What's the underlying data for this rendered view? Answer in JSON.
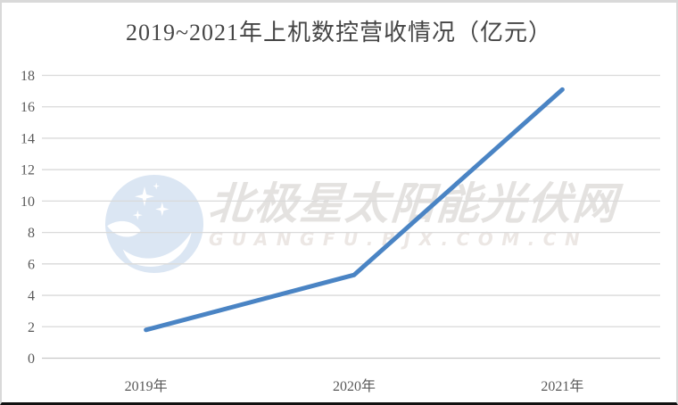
{
  "chart_data": {
    "type": "line",
    "title": "2019~2021年上机数控营收情况（亿元）",
    "categories": [
      "2019年",
      "2020年",
      "2021年"
    ],
    "values": [
      1.8,
      5.3,
      17.1
    ],
    "xlabel": "",
    "ylabel": "",
    "ylim": [
      0,
      18
    ],
    "ytick_step": 2,
    "grid": true,
    "legend": "none",
    "line_color": "#4a84c4"
  },
  "watermark": {
    "cn_text": "北极星太阳能光伏网",
    "latin_text": "GUANGFU.BJX.COM.CN",
    "logo_icon": "bjx-star-logo-icon"
  },
  "colors": {
    "background": "#ffffff",
    "frame_border": "#d9d9d9",
    "bottom_edge": "#111111",
    "gridline": "#dadada",
    "axis_line": "#c8c8c8",
    "tick_text": "#595959",
    "title_text": "#454545",
    "watermark_circle": "#dbe6f3",
    "watermark_text": "#e4e2e0"
  }
}
